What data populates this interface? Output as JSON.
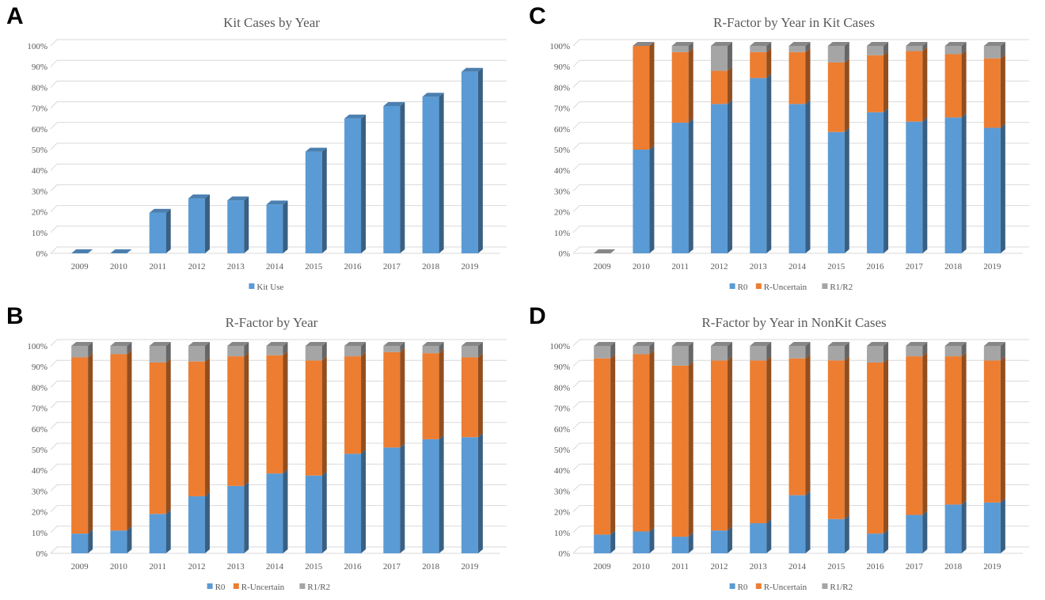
{
  "colors": {
    "r0": "#5B9BD5",
    "uncertain": "#ED7D31",
    "r1r2": "#A5A5A5",
    "grid": "#D9D9D9",
    "text": "#595959"
  },
  "panels": [
    {
      "letter": "A"
    },
    {
      "letter": "C"
    },
    {
      "letter": "B"
    },
    {
      "letter": "D"
    }
  ],
  "chart_data": [
    {
      "panel": "A",
      "type": "bar",
      "title": "Kit Cases by Year",
      "categories": [
        "2009",
        "2010",
        "2011",
        "2012",
        "2013",
        "2014",
        "2015",
        "2016",
        "2017",
        "2018",
        "2019"
      ],
      "ylim": [
        0,
        100
      ],
      "yticks": [
        "0%",
        "10%",
        "20%",
        "30%",
        "40%",
        "50%",
        "60%",
        "70%",
        "80%",
        "90%",
        "100%"
      ],
      "grid": true,
      "legend_position": "bottom",
      "series": [
        {
          "name": "Kit Use",
          "color": "#5B9BD5",
          "values": [
            0,
            0,
            19.5,
            26.5,
            25.5,
            23.5,
            49,
            65,
            71,
            75.5,
            87.5
          ]
        }
      ]
    },
    {
      "panel": "C",
      "type": "bar",
      "stacked": true,
      "title": "R-Factor by Year in Kit Cases",
      "categories": [
        "2009",
        "2010",
        "2011",
        "2012",
        "2013",
        "2014",
        "2015",
        "2016",
        "2017",
        "2018",
        "2019"
      ],
      "ylim": [
        0,
        100
      ],
      "yticks": [
        "0%",
        "10%",
        "20%",
        "30%",
        "40%",
        "50%",
        "60%",
        "70%",
        "80%",
        "90%",
        "100%"
      ],
      "grid": true,
      "legend_position": "bottom",
      "series": [
        {
          "name": "R0",
          "color": "#5B9BD5",
          "values": [
            0,
            50,
            63,
            72,
            84.5,
            72,
            58.5,
            68,
            63.5,
            65.5,
            60.5
          ]
        },
        {
          "name": "R-Uncertain",
          "color": "#ED7D31",
          "values": [
            0,
            50,
            34,
            16,
            12.5,
            25,
            33.5,
            27.5,
            34,
            30.5,
            33.5
          ]
        },
        {
          "name": "R1/R2",
          "color": "#A5A5A5",
          "values": [
            0,
            0,
            3,
            12,
            3,
            3,
            8,
            4.5,
            2.5,
            4,
            6
          ]
        }
      ]
    },
    {
      "panel": "B",
      "type": "bar",
      "stacked": true,
      "title": "R-Factor by Year",
      "categories": [
        "2009",
        "2010",
        "2011",
        "2012",
        "2013",
        "2014",
        "2015",
        "2016",
        "2017",
        "2018",
        "2019"
      ],
      "ylim": [
        0,
        100
      ],
      "yticks": [
        "0%",
        "10%",
        "20%",
        "30%",
        "40%",
        "50%",
        "60%",
        "70%",
        "80%",
        "90%",
        "100%"
      ],
      "grid": true,
      "legend_position": "bottom",
      "series": [
        {
          "name": "R0",
          "color": "#5B9BD5",
          "values": [
            9.5,
            11,
            19,
            27.5,
            32.5,
            38.5,
            37.5,
            48,
            51,
            55,
            56
          ]
        },
        {
          "name": "R-Uncertain",
          "color": "#ED7D31",
          "values": [
            85,
            85,
            73,
            65,
            62.5,
            57,
            55.5,
            47,
            46,
            41.5,
            38.5
          ]
        },
        {
          "name": "R1/R2",
          "color": "#A5A5A5",
          "values": [
            5.5,
            4,
            8,
            7.5,
            5,
            4.5,
            7,
            5,
            3,
            3.5,
            5.5
          ]
        }
      ]
    },
    {
      "panel": "D",
      "type": "bar",
      "stacked": true,
      "title": "R-Factor by Year in NonKit Cases",
      "categories": [
        "2009",
        "2010",
        "2011",
        "2012",
        "2013",
        "2014",
        "2015",
        "2016",
        "2017",
        "2018",
        "2019"
      ],
      "ylim": [
        0,
        100
      ],
      "yticks": [
        "0%",
        "10%",
        "20%",
        "30%",
        "40%",
        "50%",
        "60%",
        "70%",
        "80%",
        "90%",
        "100%"
      ],
      "grid": true,
      "legend_position": "bottom",
      "series": [
        {
          "name": "R0",
          "color": "#5B9BD5",
          "values": [
            9,
            10.5,
            8,
            11,
            14.5,
            28,
            16.5,
            9.5,
            18.5,
            23.5,
            24.5
          ]
        },
        {
          "name": "R-Uncertain",
          "color": "#ED7D31",
          "values": [
            85,
            85.5,
            82.5,
            82,
            78.5,
            66,
            76.5,
            82.5,
            76.5,
            71.5,
            68.5
          ]
        },
        {
          "name": "R1/R2",
          "color": "#A5A5A5",
          "values": [
            6,
            4,
            9.5,
            7,
            7,
            6,
            7,
            8,
            5,
            5,
            7
          ]
        }
      ]
    }
  ]
}
